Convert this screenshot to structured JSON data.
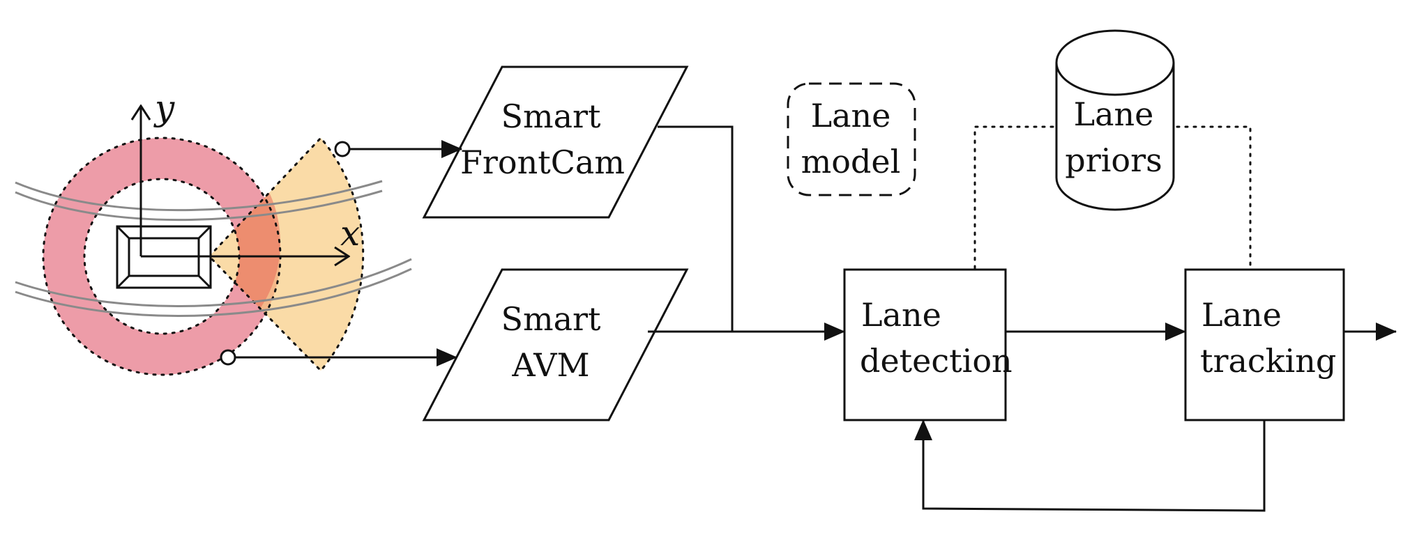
{
  "diagram": {
    "sensors": {
      "axis_x": "x",
      "axis_y": "y"
    },
    "nodes": {
      "frontcam": {
        "line1": "Smart",
        "line2": "FrontCam"
      },
      "avm": {
        "line1": "Smart",
        "line2": "AVM"
      },
      "lane_model": {
        "line1": "Lane",
        "line2": "model"
      },
      "lane_priors": {
        "line1": "Lane",
        "line2": "priors"
      },
      "lane_detection": {
        "line1": "Lane",
        "line2": "detection"
      },
      "lane_tracking": {
        "line1": "Lane",
        "line2": "tracking"
      }
    },
    "colors": {
      "avm_ring": "#e8808f",
      "frontcam_fov": "#f7c878",
      "overlap": "#e86a5a",
      "road_lines": "#8a8a8a",
      "stroke": "#111111"
    }
  }
}
